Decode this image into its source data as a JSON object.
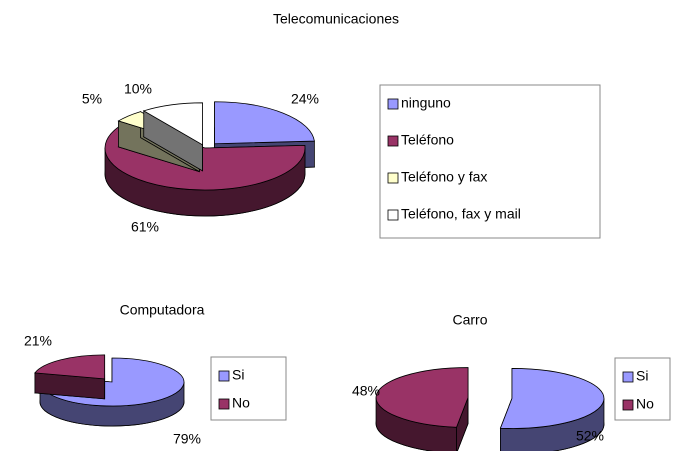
{
  "chart_data": [
    {
      "type": "pie",
      "title": "Telecomunicaciones",
      "categories": [
        "ninguno",
        "Teléfono",
        "Teléfono y fax",
        "Teléfono, fax y mail"
      ],
      "values": [
        24,
        61,
        5,
        10
      ],
      "value_labels": [
        "24%",
        "61%",
        "5%",
        "10%"
      ],
      "colors": [
        "#9999ff",
        "#993366",
        "#ffffcc",
        "#ffffff"
      ],
      "legend": "right"
    },
    {
      "type": "pie",
      "title": "Computadora",
      "categories": [
        "Si",
        "No"
      ],
      "values": [
        79,
        21
      ],
      "value_labels": [
        "79%",
        "21%"
      ],
      "colors": [
        "#9999ff",
        "#993366"
      ],
      "legend": "right"
    },
    {
      "type": "pie",
      "title": "Carro",
      "categories": [
        "Si",
        "No"
      ],
      "values": [
        52,
        48
      ],
      "value_labels": [
        "52%",
        "48%"
      ],
      "colors": [
        "#9999ff",
        "#993366"
      ],
      "legend": "right"
    }
  ]
}
